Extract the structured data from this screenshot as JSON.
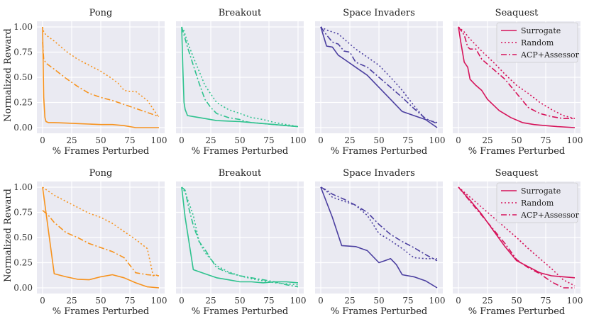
{
  "figure": {
    "ylabel": "Normalized Reward",
    "xlabel": "% Frames Perturbed",
    "legend_labels": [
      "Surrogate",
      "Random",
      "ACP+Assessor"
    ],
    "x_ticks": [
      "0",
      "25",
      "50",
      "75",
      "100"
    ],
    "y_ticks": [
      "0.00",
      "0.25",
      "0.50",
      "0.75",
      "1.00"
    ]
  },
  "chart_data": [
    {
      "type": "line",
      "title": "Pong",
      "color": "#f7931e",
      "xlabel": "% Frames Perturbed",
      "ylabel": "Normalized Reward",
      "xlim": [
        0,
        100
      ],
      "ylim": [
        0,
        1
      ],
      "series": [
        {
          "name": "Surrogate",
          "x": [
            0,
            1,
            2,
            3,
            5,
            10,
            20,
            30,
            40,
            50,
            60,
            70,
            80,
            90,
            100
          ],
          "y": [
            1.0,
            0.3,
            0.1,
            0.06,
            0.05,
            0.05,
            0.045,
            0.04,
            0.035,
            0.03,
            0.03,
            0.02,
            0.0,
            0.0,
            0.0
          ]
        },
        {
          "name": "Random",
          "x": [
            0,
            1,
            3,
            10,
            20,
            30,
            40,
            50,
            58,
            65,
            70,
            75,
            80,
            90,
            100
          ],
          "y": [
            1.0,
            0.95,
            0.92,
            0.86,
            0.76,
            0.68,
            0.62,
            0.56,
            0.5,
            0.44,
            0.37,
            0.36,
            0.36,
            0.27,
            0.1
          ]
        },
        {
          "name": "ACP+Assessor",
          "x": [
            0,
            1,
            3,
            10,
            20,
            30,
            40,
            50,
            60,
            70,
            80,
            90,
            100
          ],
          "y": [
            0.85,
            0.68,
            0.64,
            0.58,
            0.49,
            0.41,
            0.34,
            0.3,
            0.27,
            0.23,
            0.19,
            0.15,
            0.11
          ]
        }
      ]
    },
    {
      "type": "line",
      "title": "Breakout",
      "color": "#2ec28e",
      "xlabel": "% Frames Perturbed",
      "ylabel": "",
      "xlim": [
        0,
        100
      ],
      "ylim": [
        0,
        1
      ],
      "series": [
        {
          "name": "Surrogate",
          "x": [
            0,
            1,
            2,
            3,
            5,
            10,
            20,
            30,
            40,
            50,
            60,
            70,
            80,
            90,
            100
          ],
          "y": [
            1.0,
            0.6,
            0.25,
            0.18,
            0.12,
            0.11,
            0.09,
            0.07,
            0.065,
            0.06,
            0.05,
            0.04,
            0.03,
            0.02,
            0.01
          ]
        },
        {
          "name": "Random",
          "x": [
            0,
            2,
            5,
            10,
            20,
            30,
            40,
            50,
            60,
            70,
            80,
            90,
            100
          ],
          "y": [
            1.0,
            0.96,
            0.85,
            0.7,
            0.42,
            0.25,
            0.18,
            0.14,
            0.1,
            0.08,
            0.05,
            0.03,
            0.01
          ]
        },
        {
          "name": "ACP+Assessor",
          "x": [
            0,
            2,
            5,
            10,
            15,
            20,
            25,
            30,
            40,
            50,
            55,
            60,
            70,
            80,
            90,
            100
          ],
          "y": [
            1.0,
            0.92,
            0.8,
            0.62,
            0.44,
            0.28,
            0.2,
            0.14,
            0.1,
            0.08,
            0.06,
            0.05,
            0.04,
            0.03,
            0.02,
            0.01
          ]
        }
      ]
    },
    {
      "type": "line",
      "title": "Space Invaders",
      "color": "#4b3fa0",
      "xlabel": "% Frames Perturbed",
      "ylabel": "",
      "xlim": [
        0,
        100
      ],
      "ylim": [
        0,
        1
      ],
      "series": [
        {
          "name": "Surrogate",
          "x": [
            0,
            5,
            10,
            15,
            20,
            30,
            40,
            50,
            60,
            70,
            80,
            90,
            100
          ],
          "y": [
            1.0,
            0.81,
            0.8,
            0.72,
            0.68,
            0.6,
            0.52,
            0.4,
            0.28,
            0.16,
            0.12,
            0.08,
            0.0
          ]
        },
        {
          "name": "Random",
          "x": [
            0,
            5,
            10,
            15,
            20,
            30,
            40,
            50,
            60,
            70,
            80,
            90,
            100
          ],
          "y": [
            1.0,
            0.97,
            0.95,
            0.93,
            0.88,
            0.78,
            0.7,
            0.62,
            0.5,
            0.37,
            0.22,
            0.08,
            0.05
          ]
        },
        {
          "name": "ACP+Assessor",
          "x": [
            0,
            5,
            10,
            15,
            20,
            25,
            30,
            40,
            50,
            60,
            70,
            80,
            90,
            100
          ],
          "y": [
            1.0,
            0.92,
            0.85,
            0.83,
            0.76,
            0.75,
            0.65,
            0.6,
            0.5,
            0.4,
            0.3,
            0.19,
            0.09,
            0.04
          ]
        }
      ]
    },
    {
      "type": "line",
      "title": "Seaquest",
      "color": "#d6135a",
      "xlabel": "% Frames Perturbed",
      "ylabel": "",
      "xlim": [
        0,
        100
      ],
      "ylim": [
        0,
        1
      ],
      "series": [
        {
          "name": "Surrogate",
          "x": [
            0,
            2,
            5,
            8,
            10,
            15,
            20,
            25,
            35,
            45,
            55,
            65,
            75,
            85,
            100
          ],
          "y": [
            1.0,
            0.85,
            0.65,
            0.6,
            0.48,
            0.42,
            0.37,
            0.28,
            0.17,
            0.1,
            0.05,
            0.03,
            0.02,
            0.01,
            0.0
          ]
        },
        {
          "name": "Random",
          "x": [
            0,
            5,
            10,
            20,
            30,
            40,
            50,
            60,
            70,
            80,
            90,
            100
          ],
          "y": [
            1.0,
            0.95,
            0.88,
            0.76,
            0.65,
            0.53,
            0.42,
            0.34,
            0.25,
            0.18,
            0.12,
            0.09
          ]
        },
        {
          "name": "ACP+Assessor",
          "x": [
            0,
            5,
            8,
            10,
            15,
            20,
            30,
            40,
            50,
            60,
            70,
            80,
            90,
            100
          ],
          "y": [
            1.0,
            0.92,
            0.8,
            0.78,
            0.78,
            0.68,
            0.58,
            0.48,
            0.34,
            0.2,
            0.14,
            0.11,
            0.09,
            0.09
          ]
        }
      ]
    },
    {
      "type": "line",
      "title": "Pong",
      "color": "#f7931e",
      "xlabel": "% Frames Perturbed",
      "ylabel": "Normalized Reward",
      "xlim": [
        0,
        100
      ],
      "ylim": [
        0,
        1
      ],
      "series": [
        {
          "name": "Surrogate",
          "x": [
            0,
            10,
            20,
            30,
            40,
            50,
            60,
            70,
            80,
            90,
            100
          ],
          "y": [
            1.0,
            0.14,
            0.11,
            0.085,
            0.08,
            0.11,
            0.13,
            0.1,
            0.05,
            0.01,
            0.0
          ]
        },
        {
          "name": "Random",
          "x": [
            0,
            10,
            20,
            30,
            40,
            50,
            60,
            70,
            80,
            90,
            95,
            100
          ],
          "y": [
            1.0,
            0.92,
            0.86,
            0.8,
            0.74,
            0.7,
            0.64,
            0.56,
            0.48,
            0.39,
            0.12,
            0.13
          ]
        },
        {
          "name": "ACP+Assessor",
          "x": [
            0,
            5,
            10,
            20,
            30,
            40,
            50,
            60,
            70,
            80,
            90,
            100
          ],
          "y": [
            0.77,
            0.72,
            0.65,
            0.55,
            0.5,
            0.44,
            0.4,
            0.36,
            0.3,
            0.15,
            0.13,
            0.12
          ]
        }
      ]
    },
    {
      "type": "line",
      "title": "Breakout",
      "color": "#2ec28e",
      "xlabel": "% Frames Perturbed",
      "ylabel": "",
      "xlim": [
        0,
        100
      ],
      "ylim": [
        0,
        1
      ],
      "series": [
        {
          "name": "Surrogate",
          "x": [
            0,
            3,
            10,
            20,
            30,
            40,
            50,
            60,
            70,
            80,
            90,
            100
          ],
          "y": [
            1.0,
            0.7,
            0.18,
            0.14,
            0.1,
            0.08,
            0.06,
            0.06,
            0.05,
            0.06,
            0.06,
            0.05
          ]
        },
        {
          "name": "Random",
          "x": [
            0,
            3,
            6,
            10,
            15,
            20,
            30,
            40,
            50,
            60,
            70,
            80,
            90,
            100
          ],
          "y": [
            1.0,
            0.95,
            0.85,
            0.72,
            0.46,
            0.35,
            0.22,
            0.16,
            0.12,
            0.09,
            0.07,
            0.05,
            0.04,
            0.03
          ]
        },
        {
          "name": "ACP+Assessor",
          "x": [
            0,
            3,
            6,
            10,
            15,
            20,
            30,
            40,
            50,
            60,
            70,
            80,
            90,
            100
          ],
          "y": [
            1.0,
            0.97,
            0.8,
            0.62,
            0.46,
            0.38,
            0.2,
            0.15,
            0.12,
            0.1,
            0.08,
            0.06,
            0.03,
            0.01
          ]
        }
      ]
    },
    {
      "type": "line",
      "title": "Space Invaders",
      "color": "#4b3fa0",
      "xlabel": "% Frames Perturbed",
      "ylabel": "",
      "xlim": [
        0,
        100
      ],
      "ylim": [
        0,
        1
      ],
      "series": [
        {
          "name": "Surrogate",
          "x": [
            0,
            10,
            18,
            30,
            40,
            50,
            55,
            60,
            65,
            70,
            80,
            90,
            100
          ],
          "y": [
            1.0,
            0.7,
            0.42,
            0.41,
            0.37,
            0.25,
            0.27,
            0.29,
            0.23,
            0.13,
            0.11,
            0.07,
            0.0
          ]
        },
        {
          "name": "Random",
          "x": [
            0,
            5,
            10,
            20,
            30,
            40,
            50,
            60,
            70,
            80,
            90,
            100
          ],
          "y": [
            1.0,
            0.96,
            0.9,
            0.86,
            0.82,
            0.72,
            0.54,
            0.47,
            0.39,
            0.3,
            0.29,
            0.29
          ]
        },
        {
          "name": "ACP+Assessor",
          "x": [
            0,
            5,
            10,
            20,
            30,
            40,
            50,
            60,
            70,
            80,
            90,
            100
          ],
          "y": [
            1.0,
            0.97,
            0.93,
            0.88,
            0.82,
            0.75,
            0.63,
            0.53,
            0.46,
            0.4,
            0.33,
            0.27
          ]
        }
      ]
    },
    {
      "type": "line",
      "title": "Seaquest",
      "color": "#d6135a",
      "xlabel": "% Frames Perturbed",
      "ylabel": "",
      "xlim": [
        0,
        100
      ],
      "ylim": [
        0,
        1
      ],
      "series": [
        {
          "name": "Surrogate",
          "x": [
            0,
            10,
            20,
            30,
            40,
            50,
            60,
            70,
            80,
            90,
            100
          ],
          "y": [
            1.0,
            0.87,
            0.73,
            0.57,
            0.41,
            0.27,
            0.21,
            0.15,
            0.12,
            0.11,
            0.1
          ]
        },
        {
          "name": "Random",
          "x": [
            0,
            10,
            20,
            30,
            40,
            50,
            60,
            70,
            80,
            90,
            100
          ],
          "y": [
            1.0,
            0.9,
            0.8,
            0.7,
            0.6,
            0.5,
            0.39,
            0.29,
            0.19,
            0.08,
            0.02
          ]
        },
        {
          "name": "ACP+Assessor",
          "x": [
            0,
            10,
            20,
            30,
            40,
            50,
            60,
            70,
            80,
            90,
            100
          ],
          "y": [
            1.0,
            0.86,
            0.72,
            0.58,
            0.44,
            0.28,
            0.2,
            0.14,
            0.06,
            0.0,
            0.0
          ]
        }
      ]
    }
  ]
}
